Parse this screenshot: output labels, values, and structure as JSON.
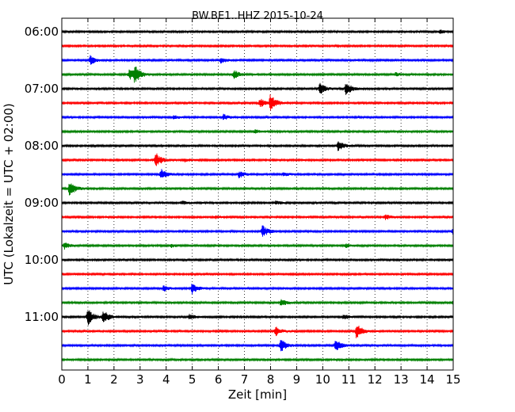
{
  "chart_data": {
    "type": "line",
    "title": "BW.BE1..HHZ 2015-10-24",
    "xlabel": "Zeit  [min]",
    "ylabel": "UTC (Lokalzeit = UTC + 02:00)",
    "xlim": [
      0,
      15
    ],
    "x_ticks": [
      "0",
      "1",
      "2",
      "3",
      "4",
      "5",
      "6",
      "7",
      "8",
      "9",
      "10",
      "11",
      "12",
      "13",
      "14",
      "15"
    ],
    "y_tick_labels": [
      "06:00",
      "07:00",
      "08:00",
      "09:00",
      "10:00",
      "11:00"
    ],
    "grid": "vertical dotted at each minute",
    "trace_colors": [
      "#000000",
      "#ff0000",
      "#0000ff",
      "#008000"
    ],
    "traces": [
      {
        "start": "06:00",
        "events": [
          [
            14.5,
            0.2
          ]
        ]
      },
      {
        "start": "06:15",
        "events": []
      },
      {
        "start": "06:30",
        "events": [
          [
            1.1,
            0.5
          ],
          [
            6.1,
            0.3
          ]
        ]
      },
      {
        "start": "06:45",
        "events": [
          [
            2.6,
            0.6
          ],
          [
            2.8,
            1.0
          ],
          [
            6.6,
            0.5
          ],
          [
            12.8,
            0.2
          ]
        ]
      },
      {
        "start": "07:00",
        "events": [
          [
            9.9,
            0.7
          ],
          [
            10.9,
            0.8
          ]
        ]
      },
      {
        "start": "07:15",
        "events": [
          [
            8.0,
            1.0
          ],
          [
            7.6,
            0.5
          ]
        ]
      },
      {
        "start": "07:30",
        "events": [
          [
            4.3,
            0.2
          ],
          [
            6.2,
            0.3
          ]
        ]
      },
      {
        "start": "07:45",
        "events": [
          [
            7.4,
            0.2
          ]
        ]
      },
      {
        "start": "08:00",
        "events": [
          [
            10.6,
            0.6
          ]
        ]
      },
      {
        "start": "08:15",
        "events": [
          [
            3.6,
            0.9
          ],
          [
            4.7,
            0.2
          ]
        ]
      },
      {
        "start": "08:30",
        "events": [
          [
            3.8,
            0.6
          ],
          [
            6.8,
            0.4
          ],
          [
            8.5,
            0.2
          ]
        ]
      },
      {
        "start": "08:45",
        "events": [
          [
            0.3,
            0.9
          ]
        ]
      },
      {
        "start": "09:00",
        "events": [
          [
            4.6,
            0.2
          ],
          [
            8.2,
            0.2
          ]
        ]
      },
      {
        "start": "09:15",
        "events": [
          [
            5.9,
            0.2
          ],
          [
            12.4,
            0.3
          ]
        ]
      },
      {
        "start": "09:30",
        "events": [
          [
            7.7,
            0.7
          ],
          [
            15.0,
            0.3
          ]
        ]
      },
      {
        "start": "09:45",
        "events": [
          [
            0.1,
            0.4
          ],
          [
            4.2,
            0.2
          ],
          [
            10.9,
            0.2
          ]
        ]
      },
      {
        "start": "10:00",
        "events": []
      },
      {
        "start": "10:15",
        "events": []
      },
      {
        "start": "10:30",
        "events": [
          [
            3.9,
            0.3
          ],
          [
            5.0,
            0.6
          ]
        ]
      },
      {
        "start": "10:45",
        "events": [
          [
            8.4,
            0.4
          ],
          [
            15.0,
            0.3
          ]
        ]
      },
      {
        "start": "11:00",
        "events": [
          [
            1.0,
            1.0
          ],
          [
            1.6,
            0.8
          ],
          [
            4.9,
            0.3
          ],
          [
            10.8,
            0.3
          ]
        ]
      },
      {
        "start": "11:15",
        "events": [
          [
            8.2,
            0.5
          ],
          [
            11.3,
            0.9
          ]
        ]
      },
      {
        "start": "11:30",
        "events": [
          [
            8.4,
            0.8
          ],
          [
            10.5,
            0.7
          ]
        ]
      },
      {
        "start": "11:45",
        "events": []
      }
    ]
  }
}
